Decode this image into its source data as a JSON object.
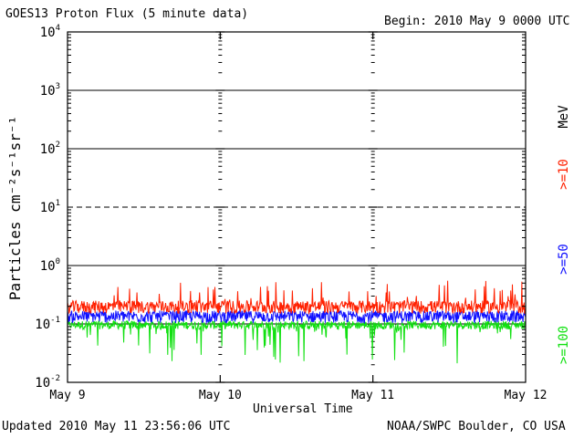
{
  "header": {
    "title": "GOES13 Proton Flux (5 minute data)",
    "begin": "Begin: 2010 May 9 0000 UTC"
  },
  "footer": {
    "updated": "Updated 2010 May 11 23:56:06 UTC",
    "credit": "NOAA/SWPC Boulder, CO USA"
  },
  "chart_data": {
    "type": "line",
    "title": "GOES13 Proton Flux (5 minute data)",
    "xlabel": "Universal Time",
    "ylabel": "Particles cm⁻²s⁻¹sr⁻¹",
    "y_scale": "log",
    "ylim": [
      0.01,
      10000
    ],
    "y_ticks": [
      {
        "exp": "-2",
        "value": 0.01
      },
      {
        "exp": "-1",
        "value": 0.1
      },
      {
        "exp": "0",
        "value": 1
      },
      {
        "exp": "1",
        "value": 10
      },
      {
        "exp": "2",
        "value": 100
      },
      {
        "exp": "3",
        "value": 1000
      },
      {
        "exp": "4",
        "value": 10000
      }
    ],
    "x_ticks": [
      "May 9",
      "May 10",
      "May 11",
      "May 12"
    ],
    "xlim": [
      "2010-05-09",
      "2010-05-12"
    ],
    "unit_label": "MeV",
    "series": [
      {
        "name": ">=10",
        "color": "#ff2000",
        "typical": 0.2,
        "range": [
          0.1,
          0.55
        ]
      },
      {
        "name": ">=50",
        "color": "#1010ff",
        "typical": 0.13,
        "range": [
          0.09,
          0.2
        ]
      },
      {
        "name": ">=100",
        "color": "#10e010",
        "typical": 0.09,
        "range": [
          0.02,
          0.13
        ]
      }
    ],
    "grid": "horizontal lines at each decade, dashed at 10^1, dotted/tick at day boundaries"
  }
}
